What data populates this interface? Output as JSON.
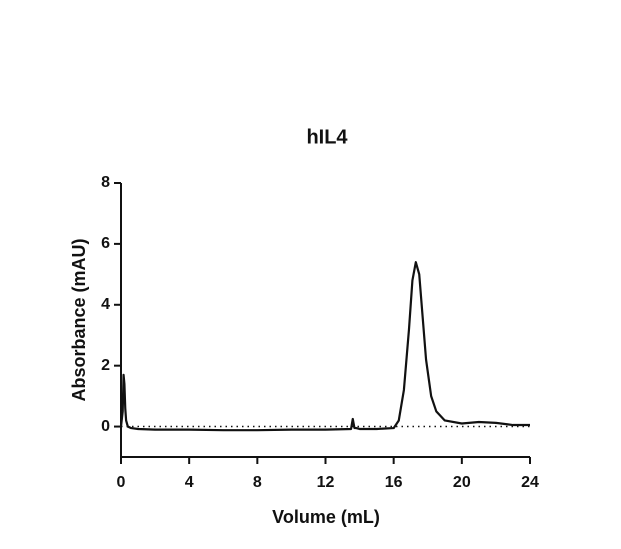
{
  "chart_data": {
    "type": "line",
    "title": "hIL4",
    "x_label": "Volume (mL)",
    "y_label": "Absorbance (mAU)",
    "x": [
      0,
      0.1,
      0.15,
      0.2,
      0.25,
      0.3,
      0.4,
      0.6,
      1,
      2,
      4,
      6,
      8,
      10,
      12,
      13.5,
      13.6,
      13.7,
      13.8,
      14,
      15,
      16,
      16.3,
      16.6,
      16.9,
      17.1,
      17.3,
      17.5,
      17.7,
      17.9,
      18.2,
      18.5,
      19,
      20,
      21,
      22,
      23,
      24
    ],
    "values": [
      0,
      0.5,
      1.7,
      1.4,
      0.6,
      0.2,
      0,
      -0.05,
      -0.08,
      -0.1,
      -0.1,
      -0.12,
      -0.12,
      -0.1,
      -0.1,
      -0.08,
      0.25,
      -0.05,
      -0.05,
      -0.08,
      -0.08,
      -0.05,
      0.2,
      1.2,
      3.2,
      4.8,
      5.4,
      5.0,
      3.6,
      2.2,
      1.0,
      0.5,
      0.2,
      0.1,
      0.15,
      0.12,
      0.05,
      0.05
    ],
    "color": "#111111",
    "xlim": [
      0,
      24
    ],
    "xticks": [
      0,
      4,
      8,
      12,
      16,
      20,
      24
    ],
    "ylim": [
      -1,
      8
    ],
    "yticks": [
      0,
      2,
      4,
      6,
      8
    ],
    "reference_line": 0,
    "grid": false
  }
}
